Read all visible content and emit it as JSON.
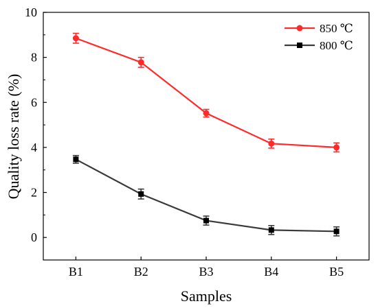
{
  "chart_data": {
    "type": "line",
    "xlabel": "Samples",
    "ylabel": "Quality loss rate (%)",
    "categories": [
      "B1",
      "B2",
      "B3",
      "B4",
      "B5"
    ],
    "ylim": [
      -1,
      10
    ],
    "yticks": [
      0,
      2,
      4,
      6,
      8,
      10
    ],
    "grid": false,
    "legend_position": "top-right",
    "series": [
      {
        "name": "850 ℃",
        "color": "#ff2a2a",
        "marker": "circle",
        "values": [
          8.85,
          7.78,
          5.52,
          4.17,
          4.0
        ],
        "error": [
          0.22,
          0.22,
          0.17,
          0.2,
          0.2
        ]
      },
      {
        "name": "800 ℃",
        "color": "#3a3a3a",
        "marker": "square",
        "values": [
          3.47,
          1.93,
          0.75,
          0.33,
          0.27
        ],
        "error": [
          0.17,
          0.22,
          0.2,
          0.2,
          0.2
        ]
      }
    ]
  }
}
